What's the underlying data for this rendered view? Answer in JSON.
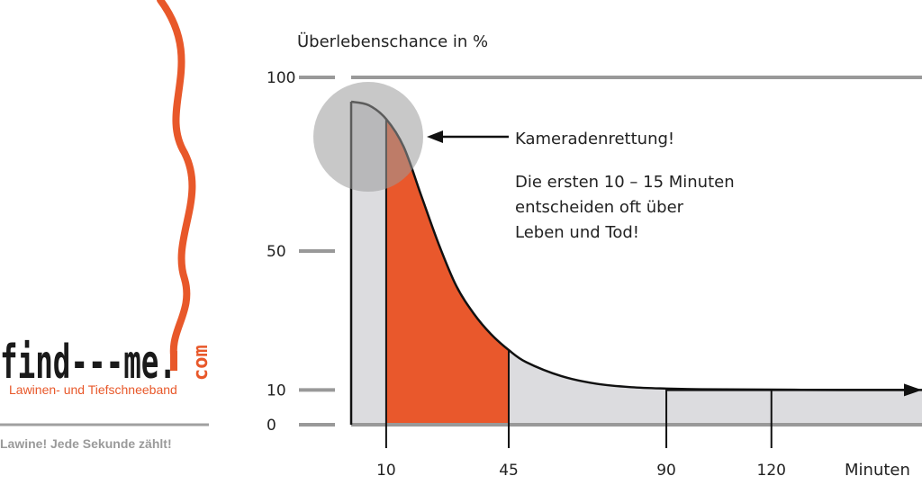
{
  "logo": {
    "brand_name": "find---me.",
    "brand_tld": "com",
    "subtitle": "Lawinen- und Tiefschneeband",
    "tagline": "Lawine! Jede Sekunde zählt!"
  },
  "colors": {
    "accent": "#e8582a",
    "fill_highlight": "#e9582c",
    "area_gray": "#dcdcdf",
    "circle_gray": "#9a9a9a",
    "axis_gray": "#999999"
  },
  "chart_data": {
    "type": "area",
    "ylabel": "Überlebenschance in %",
    "xlabel": "Minuten",
    "x_ticks": [
      10,
      45,
      90,
      120
    ],
    "y_ticks": [
      0,
      10,
      50,
      100
    ],
    "x_tick_labels": [
      "10",
      "45",
      "90",
      "120"
    ],
    "y_tick_labels": [
      "0",
      "10",
      "50",
      "100"
    ],
    "xlim": [
      0,
      163
    ],
    "ylim": [
      0,
      100
    ],
    "series": [
      {
        "x": [
          0,
          5,
          10,
          15,
          20,
          25,
          30,
          35,
          40,
          45,
          50,
          60,
          70,
          80,
          90,
          100,
          120,
          140,
          163
        ],
        "values": [
          93,
          92,
          88,
          80,
          66,
          52,
          40,
          32,
          26,
          21.5,
          18,
          14,
          11.8,
          10.8,
          10.4,
          10.2,
          10.1,
          10,
          10
        ]
      }
    ],
    "highlight_range": [
      10,
      45
    ],
    "vertical_lines": [
      10,
      45,
      90,
      120
    ],
    "annotation_title": "Kameradenrettung!",
    "annotation_text": [
      "Die ersten 10 – 15 Minuten",
      "entscheiden oft über",
      "Leben und Tod!"
    ],
    "grid": false
  }
}
